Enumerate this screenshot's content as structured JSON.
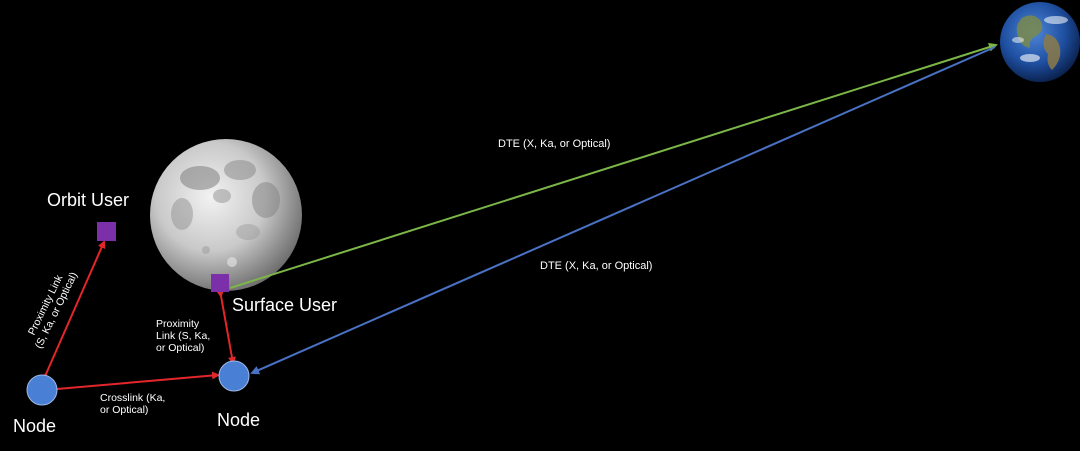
{
  "labels": {
    "orbit_user": "Orbit User",
    "surface_user": "Surface User",
    "node_left": "Node",
    "node_right": "Node",
    "prox_link_left": "Proximity Link\n(S, Ka, or Optical)",
    "prox_link_right": "Proximity\nLink (S, Ka,\nor Optical)",
    "crosslink": "Crosslink (Ka,\nor Optical)",
    "dte_upper": "DTE (X, Ka, or Optical)",
    "dte_lower": "DTE (X, Ka, or Optical)"
  },
  "colors": {
    "background": "#000000",
    "proximity_link": "#e3262a",
    "dte_green": "#7cb648",
    "dte_blue": "#4a72c4",
    "node_fill": "#4a7fd6",
    "user_fill": "#7b2fa8",
    "moon": "#bdbdbd",
    "earth_ocean": "#1e4fa0"
  }
}
